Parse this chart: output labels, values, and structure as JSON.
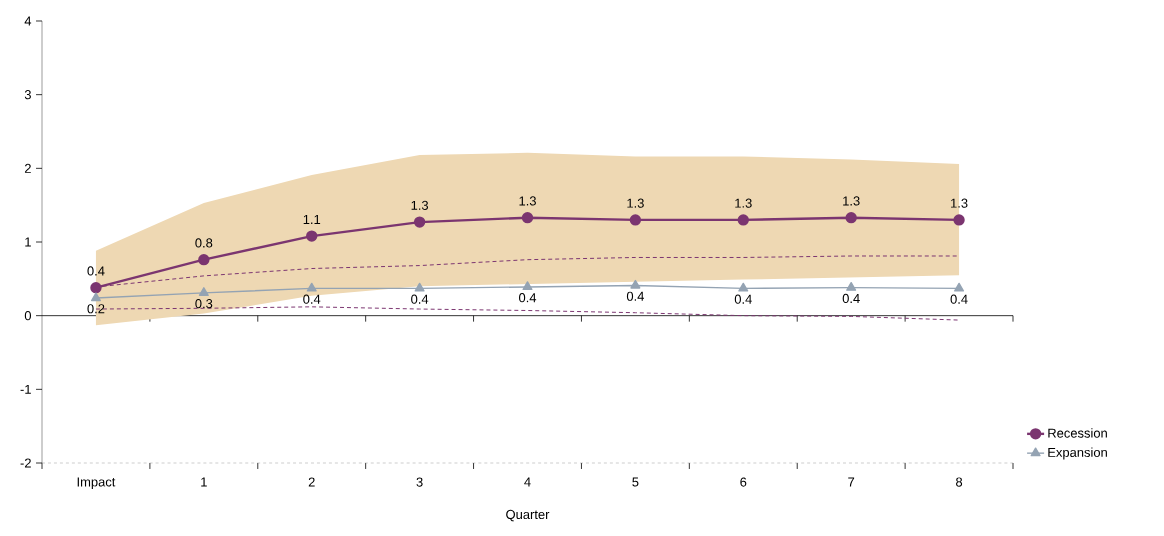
{
  "chart_data": {
    "type": "line",
    "xlabel": "Quarter",
    "categories": [
      "Impact",
      "1",
      "2",
      "3",
      "4",
      "5",
      "6",
      "7",
      "8"
    ],
    "ylim": [
      -2,
      4
    ],
    "yticks": [
      -2,
      -1,
      0,
      1,
      2,
      3,
      4
    ],
    "legend": "right",
    "series": [
      {
        "name": "Recession",
        "color": "#7b3570",
        "marker": "circle",
        "values": [
          0.38,
          0.76,
          1.08,
          1.27,
          1.33,
          1.3,
          1.3,
          1.33,
          1.3
        ],
        "lower": [
          -0.13,
          0.03,
          0.27,
          0.4,
          0.43,
          0.46,
          0.49,
          0.52,
          0.55
        ],
        "upper": [
          0.88,
          1.53,
          1.91,
          2.18,
          2.21,
          2.16,
          2.16,
          2.12,
          2.06
        ],
        "value_labels": [
          "0.4",
          "0.8",
          "1.1",
          "1.3",
          "1.3",
          "1.3",
          "1.3",
          "1.3",
          "1.3"
        ]
      },
      {
        "name": "Expansion",
        "color": "#94a3b3",
        "marker": "triangle",
        "values": [
          0.24,
          0.31,
          0.37,
          0.37,
          0.39,
          0.41,
          0.37,
          0.38,
          0.37
        ],
        "value_labels": [
          "0.2",
          "0.3",
          "0.4",
          "0.4",
          "0.4",
          "0.4",
          "0.4",
          "0.4",
          "0.4"
        ]
      },
      {
        "color": "#7b3570",
        "marker": "none",
        "line_style": "dashed",
        "values": [
          0.39,
          0.54,
          0.64,
          0.68,
          0.76,
          0.79,
          0.79,
          0.81,
          0.81
        ]
      },
      {
        "color": "#7b3570",
        "marker": "none",
        "line_style": "dashed",
        "values": [
          0.09,
          0.1,
          0.12,
          0.09,
          0.07,
          0.04,
          0.0,
          -0.01,
          -0.06
        ]
      }
    ]
  }
}
